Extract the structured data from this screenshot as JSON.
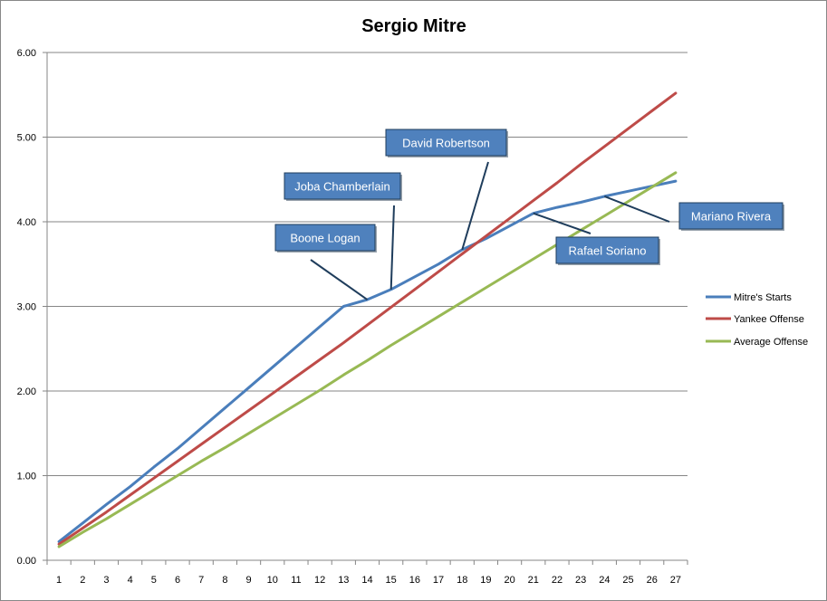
{
  "chart_data": {
    "type": "line",
    "title": "Sergio Mitre",
    "xlabel": "",
    "ylabel": "",
    "x": [
      1,
      2,
      3,
      4,
      5,
      6,
      7,
      8,
      9,
      10,
      11,
      12,
      13,
      14,
      15,
      16,
      17,
      18,
      19,
      20,
      21,
      22,
      23,
      24,
      25,
      26,
      27
    ],
    "ylim": [
      0,
      6
    ],
    "yticks": [
      "0.00",
      "1.00",
      "2.00",
      "3.00",
      "4.00",
      "5.00",
      "6.00"
    ],
    "grid": true,
    "legend_position": "right",
    "series": [
      {
        "name": "Mitre's Starts",
        "color": "#4a7ebb",
        "values": [
          0.22,
          0.44,
          0.66,
          0.87,
          1.1,
          1.32,
          1.56,
          1.8,
          2.04,
          2.28,
          2.52,
          2.76,
          3.0,
          3.08,
          3.2,
          3.35,
          3.5,
          3.67,
          3.8,
          3.95,
          4.1,
          4.17,
          4.23,
          4.3,
          4.36,
          4.42,
          4.48
        ]
      },
      {
        "name": "Yankee Offense",
        "color": "#be4b48",
        "values": [
          0.19,
          0.38,
          0.57,
          0.77,
          0.97,
          1.17,
          1.37,
          1.57,
          1.77,
          1.97,
          2.17,
          2.37,
          2.57,
          2.78,
          2.99,
          3.2,
          3.41,
          3.62,
          3.83,
          4.04,
          4.25,
          4.46,
          4.68,
          4.89,
          5.1,
          5.31,
          5.52
        ]
      },
      {
        "name": "Average Offense",
        "color": "#98b954",
        "values": [
          0.16,
          0.33,
          0.49,
          0.66,
          0.83,
          1.0,
          1.17,
          1.33,
          1.5,
          1.67,
          1.84,
          2.01,
          2.19,
          2.36,
          2.54,
          2.71,
          2.88,
          3.05,
          3.22,
          3.39,
          3.56,
          3.73,
          3.9,
          4.07,
          4.24,
          4.41,
          4.58
        ]
      }
    ],
    "annotations": [
      {
        "text": "Boone Logan",
        "x": 14
      },
      {
        "text": "Joba Chamberlain",
        "x": 15
      },
      {
        "text": "David Robertson",
        "x": 18
      },
      {
        "text": "Rafael Soriano",
        "x": 21
      },
      {
        "text": "Mariano Rivera",
        "x": 24
      }
    ]
  }
}
